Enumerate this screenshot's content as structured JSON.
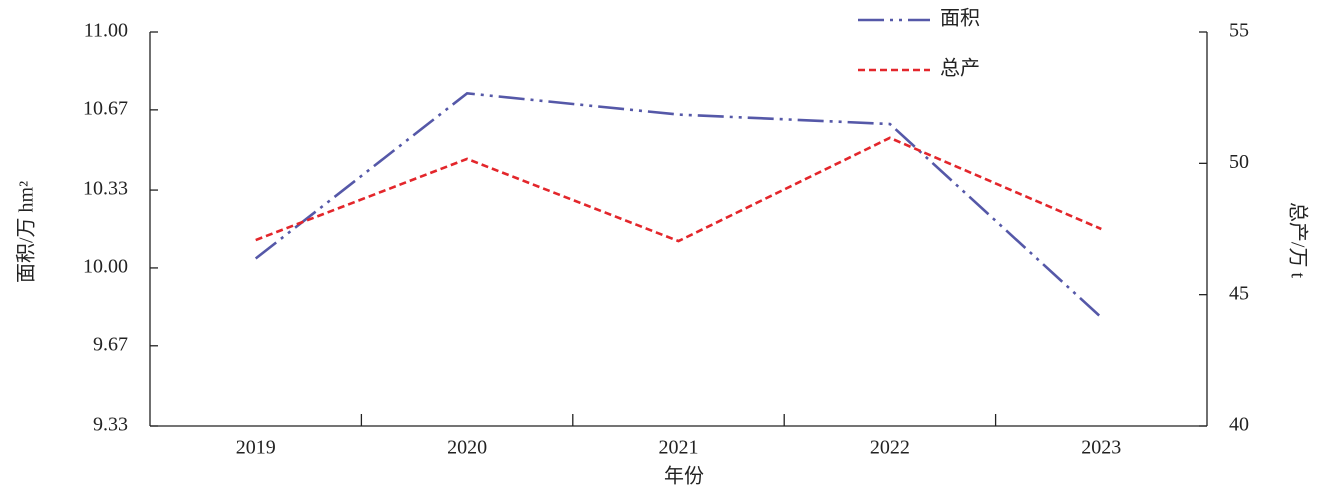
{
  "chart_data": {
    "type": "line",
    "x_label": "年份",
    "y_label": "面积/万 hm²",
    "y2_label": "总产/万 t",
    "categories": [
      "2019",
      "2020",
      "2021",
      "2022",
      "2023"
    ],
    "series": [
      {
        "name": "面积",
        "color": "#5558a8",
        "dash": "26,6,3,6,3,6",
        "values": [
          10.04,
          10.74,
          10.65,
          10.61,
          9.79
        ]
      },
      {
        "name": "总产",
        "color": "#e3262b",
        "dash": "7,4",
        "axis": "y2",
        "values": [
          47.08,
          50.17,
          47.04,
          50.97,
          47.5
        ]
      }
    ],
    "ylim": [
      9.33,
      11.0
    ],
    "yticks": [
      9.33,
      9.67,
      {
        "value": 10,
        "label": "10.00"
      },
      10.33,
      10.67,
      {
        "value": 11,
        "label": "11.00"
      }
    ],
    "y2lim": [
      40,
      55
    ],
    "y2ticks": [
      40,
      45,
      50,
      55
    ],
    "legend": "top"
  }
}
